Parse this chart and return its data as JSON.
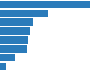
{
  "values": [
    27.0,
    14.5,
    9.8,
    9.0,
    8.5,
    8.2,
    4.5,
    1.8
  ],
  "bar_color": "#2b7bba",
  "background_color": "#ffffff",
  "grid_color": "#d3d3d3",
  "xmax": 30.0,
  "grid_ticks": [
    10,
    20,
    30
  ]
}
